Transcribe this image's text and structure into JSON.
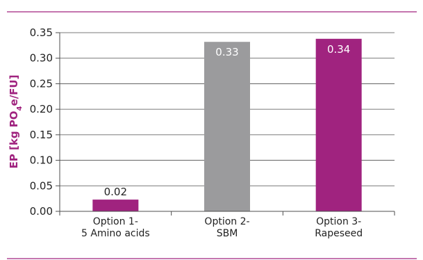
{
  "chart_data": {
    "type": "bar",
    "categories": [
      [
        "Option 1-",
        "5 Amino acids"
      ],
      [
        "Option 2-",
        "SBM"
      ],
      [
        "Option 3-",
        "Rapeseed"
      ]
    ],
    "values": [
      0.023,
      0.332,
      0.338
    ],
    "data_labels": [
      "0.02",
      "0.33",
      "0.34"
    ],
    "bar_colors": [
      "#a0237f",
      "#9b9b9d",
      "#a0237f"
    ],
    "data_label_colors": [
      "#222222",
      "#ffffff",
      "#ffffff"
    ],
    "data_label_position": [
      "outside",
      "inside",
      "inside"
    ],
    "ylabel": {
      "prefix": "EP [kg PO",
      "sub": "4",
      "suffix": "e/FU]"
    },
    "ylim": [
      0,
      0.35
    ],
    "yticks": [
      "0.00",
      "0.05",
      "0.10",
      "0.15",
      "0.20",
      "0.25",
      "0.30",
      "0.35"
    ],
    "grid": true,
    "legend": "none",
    "accent_color": "#a0237f"
  }
}
